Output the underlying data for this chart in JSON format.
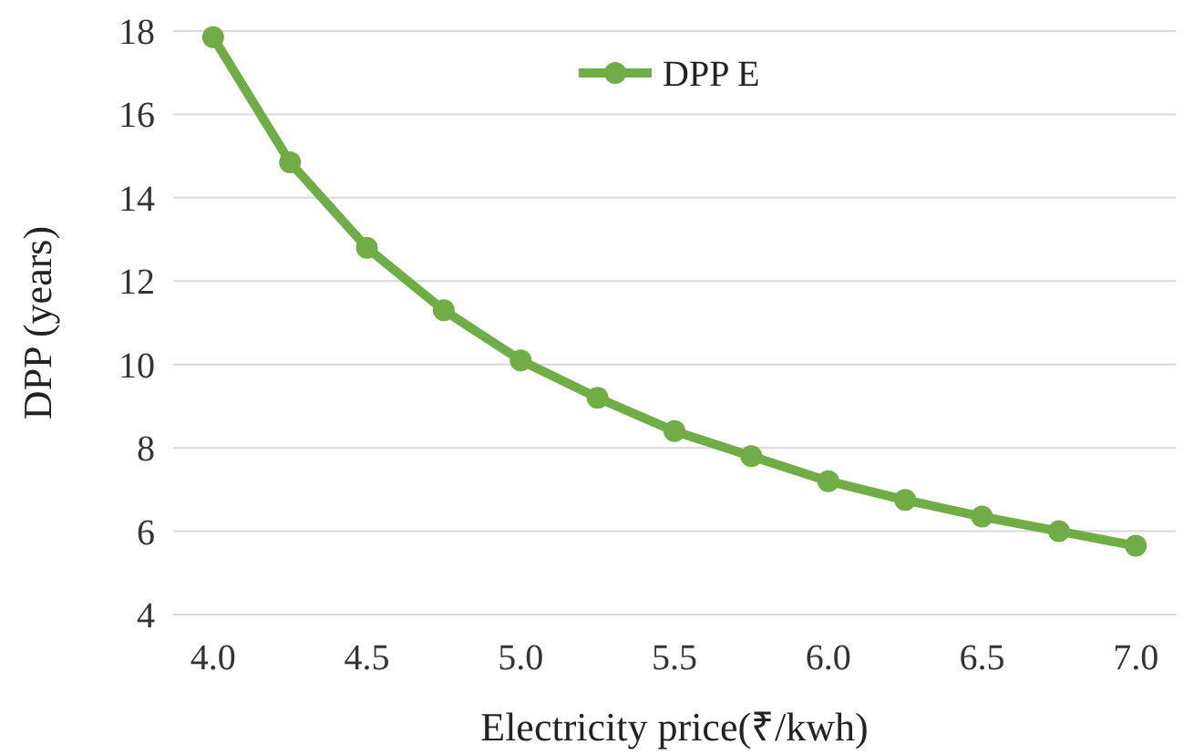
{
  "chart_data": {
    "type": "line",
    "xlabel": "Electricity price(₹/kwh)",
    "ylabel": "DPP (years)",
    "x": [
      4.0,
      4.25,
      4.5,
      4.75,
      5.0,
      5.25,
      5.5,
      5.75,
      6.0,
      6.25,
      6.5,
      6.75,
      7.0
    ],
    "series": [
      {
        "name": "DPP E",
        "color": "#70ad47",
        "values": [
          17.85,
          14.85,
          12.8,
          11.3,
          10.1,
          9.2,
          8.4,
          7.8,
          7.2,
          6.75,
          6.35,
          6.0,
          5.65
        ]
      }
    ],
    "xlim": [
      3.87,
      7.13
    ],
    "xticks": [
      {
        "value": 4,
        "label": "4.0"
      },
      {
        "value": 4.5,
        "label": "4.5"
      },
      {
        "value": 5,
        "label": "5.0"
      },
      {
        "value": 5.5,
        "label": "5.5"
      },
      {
        "value": 6,
        "label": "6.0"
      },
      {
        "value": 6.5,
        "label": "6.5"
      },
      {
        "value": 7,
        "label": "7.0"
      }
    ],
    "ylim": [
      4,
      18
    ],
    "yticks": [
      4,
      6,
      8,
      10,
      12,
      14,
      16,
      18
    ],
    "grid": "y",
    "legend": "top",
    "marker": "circle",
    "line_style": "solid"
  }
}
